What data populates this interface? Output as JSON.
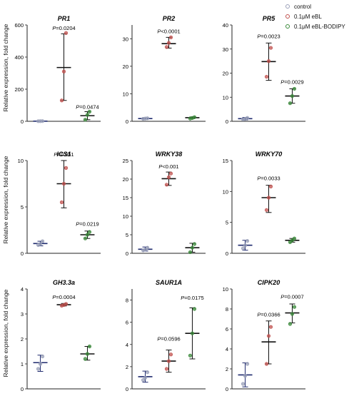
{
  "legend": [
    {
      "label": "control",
      "color": "#9aa0b8"
    },
    {
      "label": "0.1μM eBL",
      "color": "#c0504d"
    },
    {
      "label": "0.1μM eBL-BODIPY",
      "color": "#3a8a3a"
    }
  ],
  "colors": {
    "control_point": "#9aa0b8",
    "control_bar": "#1f2a6e",
    "ebl_point": "#c0504d",
    "ebl_bar": "#111111",
    "bodipy_point": "#3a8a3a",
    "bodipy_bar": "#111111"
  },
  "ylabels": [
    "Relative expression, fold change",
    "Relative expression, fold change",
    "Relative expression, fold change"
  ],
  "chart_data": [
    {
      "type": "scatter",
      "title": "PR1",
      "ylim": [
        0,
        600
      ],
      "yticks": [
        "0",
        "200",
        "400",
        "600"
      ],
      "series": [
        {
          "points": [
            0.8,
            1.0,
            1.3
          ],
          "mean": 1.0,
          "err": [
            0.5,
            1.5
          ]
        },
        {
          "points": [
            130,
            310,
            550
          ],
          "mean": 335,
          "err": [
            130,
            545
          ]
        },
        {
          "points": [
            10,
            40,
            60
          ],
          "mean": 35,
          "err": [
            10,
            60
          ]
        }
      ],
      "pvalues": [
        {
          "text": "P=0.0204",
          "anchor": 1,
          "y": 560
        },
        {
          "text": "P=0.0474",
          "anchor": 2,
          "y": 70
        }
      ]
    },
    {
      "type": "scatter",
      "title": "PR2",
      "ylim": [
        0,
        35
      ],
      "yticks": [
        "0",
        "10",
        "20",
        "30"
      ],
      "series": [
        {
          "points": [
            0.9,
            1.0,
            1.1
          ],
          "mean": 1.0,
          "err": [
            0.8,
            1.2
          ]
        },
        {
          "points": [
            27.0,
            28.5,
            30.5
          ],
          "mean": 28.2,
          "err": [
            26.6,
            30.5
          ]
        },
        {
          "points": [
            1.0,
            1.2,
            1.5
          ],
          "mean": 1.3,
          "err": [
            1.0,
            1.6
          ]
        }
      ],
      "pvalues": [
        {
          "text": "P<0.0001",
          "anchor": 1,
          "y": 31.5
        }
      ]
    },
    {
      "type": "scatter",
      "title": "PR5",
      "ylim": [
        0,
        40
      ],
      "yticks": [
        "0",
        "10",
        "20",
        "30",
        "40"
      ],
      "series": [
        {
          "points": [
            0.8,
            1.0,
            1.4
          ],
          "mean": 1.1,
          "err": [
            0.6,
            1.6
          ]
        },
        {
          "points": [
            18.5,
            25.0,
            30.5
          ],
          "mean": 24.8,
          "err": [
            17.0,
            32.5
          ]
        },
        {
          "points": [
            7.5,
            10.5,
            13.5
          ],
          "mean": 10.5,
          "err": [
            7.5,
            13.5
          ]
        }
      ],
      "pvalues": [
        {
          "text": "P=0.0023",
          "anchor": 1,
          "y": 34
        },
        {
          "text": "P=0.0029",
          "anchor": 2,
          "y": 15
        }
      ]
    },
    {
      "type": "scatter",
      "title": "ICS1",
      "ylim": [
        0,
        10
      ],
      "yticks": [
        "0",
        "5",
        "10"
      ],
      "series": [
        {
          "points": [
            0.9,
            1.0,
            1.3
          ],
          "mean": 1.05,
          "err": [
            0.8,
            1.3
          ]
        },
        {
          "points": [
            5.5,
            7.5,
            9.2
          ],
          "mean": 7.5,
          "err": [
            4.9,
            10.0
          ]
        },
        {
          "points": [
            1.6,
            2.0,
            2.3
          ],
          "mean": 2.0,
          "err": [
            1.6,
            2.4
          ]
        }
      ],
      "pvalues": [
        {
          "text": "P=0.051",
          "anchor": 1,
          "y": 10.3
        },
        {
          "text": "P=0.0219",
          "anchor": 2,
          "y": 2.8
        }
      ]
    },
    {
      "type": "scatter",
      "title": "WRKY38",
      "ylim": [
        0,
        25
      ],
      "yticks": [
        "0",
        "5",
        "10",
        "15",
        "20",
        "25"
      ],
      "series": [
        {
          "points": [
            0.8,
            1.0,
            1.5
          ],
          "mean": 1.1,
          "err": [
            0.6,
            1.7
          ]
        },
        {
          "points": [
            18.5,
            20.5,
            21.5
          ],
          "mean": 20.1,
          "err": [
            18.3,
            21.9
          ]
        },
        {
          "points": [
            0.3,
            1.5,
            2.5
          ],
          "mean": 1.5,
          "err": [
            0.3,
            2.7
          ]
        }
      ],
      "pvalues": [
        {
          "text": "P<0.001",
          "anchor": 1,
          "y": 22.5
        }
      ]
    },
    {
      "type": "scatter",
      "title": "WRKY70",
      "ylim": [
        0,
        15
      ],
      "yticks": [
        "0",
        "5",
        "10",
        "15"
      ],
      "series": [
        {
          "points": [
            0.8,
            1.3,
            2.0
          ],
          "mean": 1.3,
          "err": [
            0.5,
            2.1
          ]
        },
        {
          "points": [
            7.0,
            9.0,
            10.8
          ],
          "mean": 9.0,
          "err": [
            6.6,
            11.0
          ]
        },
        {
          "points": [
            1.8,
            2.1,
            2.4
          ],
          "mean": 2.1,
          "err": [
            1.8,
            2.4
          ]
        }
      ],
      "pvalues": [
        {
          "text": "P=0.0033",
          "anchor": 1,
          "y": 11.6
        }
      ]
    },
    {
      "type": "scatter",
      "title": "GH3.3a",
      "ylim": [
        0,
        4
      ],
      "yticks": [
        "0",
        "1",
        "2",
        "3",
        "4"
      ],
      "series": [
        {
          "points": [
            0.8,
            1.0,
            1.3
          ],
          "mean": 1.05,
          "err": [
            0.7,
            1.35
          ]
        },
        {
          "points": [
            3.33,
            3.36,
            3.4
          ],
          "mean": 3.37,
          "err": [
            3.32,
            3.42
          ]
        },
        {
          "points": [
            1.2,
            1.4,
            1.7
          ],
          "mean": 1.4,
          "err": [
            1.15,
            1.7
          ]
        }
      ],
      "pvalues": [
        {
          "text": "P=0.0004",
          "anchor": 1,
          "y": 3.55
        }
      ]
    },
    {
      "type": "scatter",
      "title": "SAUR1A",
      "ylim": [
        0,
        9
      ],
      "yticks": [
        "0",
        "2",
        "4",
        "6",
        "8"
      ],
      "series": [
        {
          "points": [
            0.8,
            1.0,
            1.5
          ],
          "mean": 1.1,
          "err": [
            0.6,
            1.6
          ]
        },
        {
          "points": [
            1.8,
            2.5,
            3.1
          ],
          "mean": 2.5,
          "err": [
            1.5,
            3.5
          ]
        },
        {
          "points": [
            3.0,
            5.0,
            7.2
          ],
          "mean": 5.0,
          "err": [
            2.7,
            7.3
          ]
        }
      ],
      "pvalues": [
        {
          "text": "P=0.0596",
          "anchor": 1,
          "y": 4.2
        },
        {
          "text": "P=0.0175",
          "anchor": 2,
          "y": 7.9
        }
      ]
    },
    {
      "type": "scatter",
      "title": "CIPK20",
      "ylim": [
        0,
        10
      ],
      "yticks": [
        "0",
        "2",
        "4",
        "6",
        "8",
        "10"
      ],
      "series": [
        {
          "points": [
            0.5,
            1.3,
            2.5
          ],
          "mean": 1.4,
          "err": [
            0.2,
            2.6
          ]
        },
        {
          "points": [
            2.5,
            5.3,
            6.2
          ],
          "mean": 4.7,
          "err": [
            2.5,
            6.8
          ]
        },
        {
          "points": [
            6.5,
            7.5,
            8.2
          ],
          "mean": 7.6,
          "err": [
            6.6,
            8.5
          ]
        }
      ],
      "pvalues": [
        {
          "text": "P=0.0366",
          "anchor": 1,
          "y": 7.1
        },
        {
          "text": "P=0.0007",
          "anchor": 2,
          "y": 8.9
        }
      ]
    }
  ]
}
